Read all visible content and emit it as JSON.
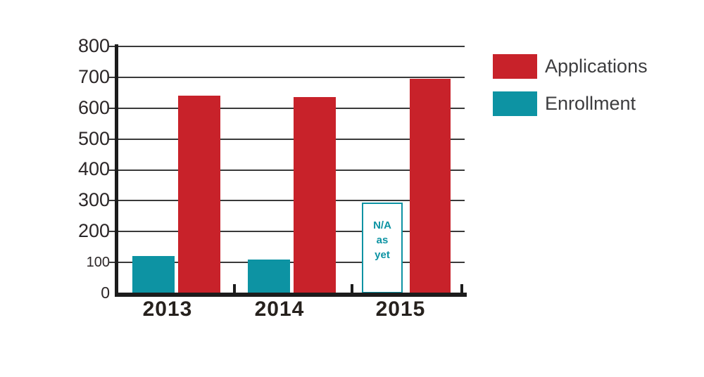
{
  "chart_data": {
    "type": "bar",
    "title": "",
    "xlabel": "",
    "ylabel": "",
    "categories": [
      "2013",
      "2014",
      "2015"
    ],
    "series": [
      {
        "name": "Applications",
        "color": "#c8222a",
        "values": [
          640,
          635,
          695
        ]
      },
      {
        "name": "Enrollment",
        "color": "#0d93a3",
        "values": [
          120,
          110,
          null
        ]
      }
    ],
    "annotation": {
      "text": "N/A\nas\nyet",
      "series": "Enrollment",
      "category": "2015",
      "box_top_value": 295,
      "style": "white box with teal outline"
    },
    "yticks": [
      0,
      100,
      200,
      300,
      400,
      500,
      600,
      700,
      800
    ],
    "ylim": [
      0,
      800
    ],
    "grid": "horizontal",
    "legend_position": "top-right"
  },
  "colors": {
    "applications": "#c8222a",
    "enrollment": "#0d93a3",
    "gridline": "#3a3a3a",
    "axis": "#1c1c1c",
    "y_label_text": "#2b2627",
    "year_label_text": "#26211d",
    "legend_text": "#3d3d3f",
    "na_text": "#0d93a3",
    "background": "#ffffff"
  }
}
